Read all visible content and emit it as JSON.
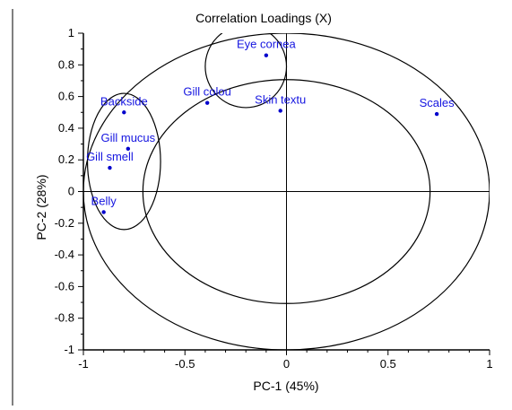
{
  "chart_data": {
    "type": "scatter",
    "title": "Correlation Loadings (X)",
    "xlabel": "PC-1 (45%)",
    "ylabel": "PC-2 (28%)",
    "xlim": [
      -1,
      1
    ],
    "ylim": [
      -1,
      1
    ],
    "x_ticks": [
      -1,
      -0.5,
      0,
      0.5,
      1
    ],
    "x_tick_labels": [
      "-1",
      "-0.5",
      "0",
      "0.5",
      "1"
    ],
    "y_ticks": [
      1,
      0.8,
      0.6,
      0.4,
      0.2,
      0,
      -0.2,
      -0.4,
      -0.6,
      -0.8,
      -1
    ],
    "y_tick_labels": [
      "1",
      "0.8",
      "0.6",
      "0.4",
      "0.2",
      "0",
      "-0.2",
      "-0.4",
      "-0.6",
      "-0.8",
      "-1"
    ],
    "grid": false,
    "point_color": "#0000cc",
    "label_color": "#1515e0",
    "points": [
      {
        "label": "Eye cornea",
        "x": -0.1,
        "y": 0.86
      },
      {
        "label": "Gill colou",
        "x": -0.39,
        "y": 0.56
      },
      {
        "label": "Skin textu",
        "x": -0.03,
        "y": 0.51
      },
      {
        "label": "Scales",
        "x": 0.74,
        "y": 0.49
      },
      {
        "label": "Backside",
        "x": -0.8,
        "y": 0.5
      },
      {
        "label": "Gill mucus",
        "x": -0.78,
        "y": 0.27
      },
      {
        "label": "Gill smell",
        "x": -0.87,
        "y": 0.15
      },
      {
        "label": "Belly",
        "x": -0.9,
        "y": -0.13
      }
    ],
    "circles": [
      {
        "name": "outer-correlation-circle",
        "r": 1
      },
      {
        "name": "inner-correlation-circle",
        "r": 0.707
      }
    ],
    "group_ellipses": [
      {
        "name": "top-group-ellipse",
        "cx": -0.2,
        "cy": 0.79,
        "rx": 0.2,
        "ry": 0.26
      },
      {
        "name": "left-group-ellipse",
        "cx": -0.8,
        "cy": 0.19,
        "rx": 0.18,
        "ry": 0.43
      }
    ]
  }
}
